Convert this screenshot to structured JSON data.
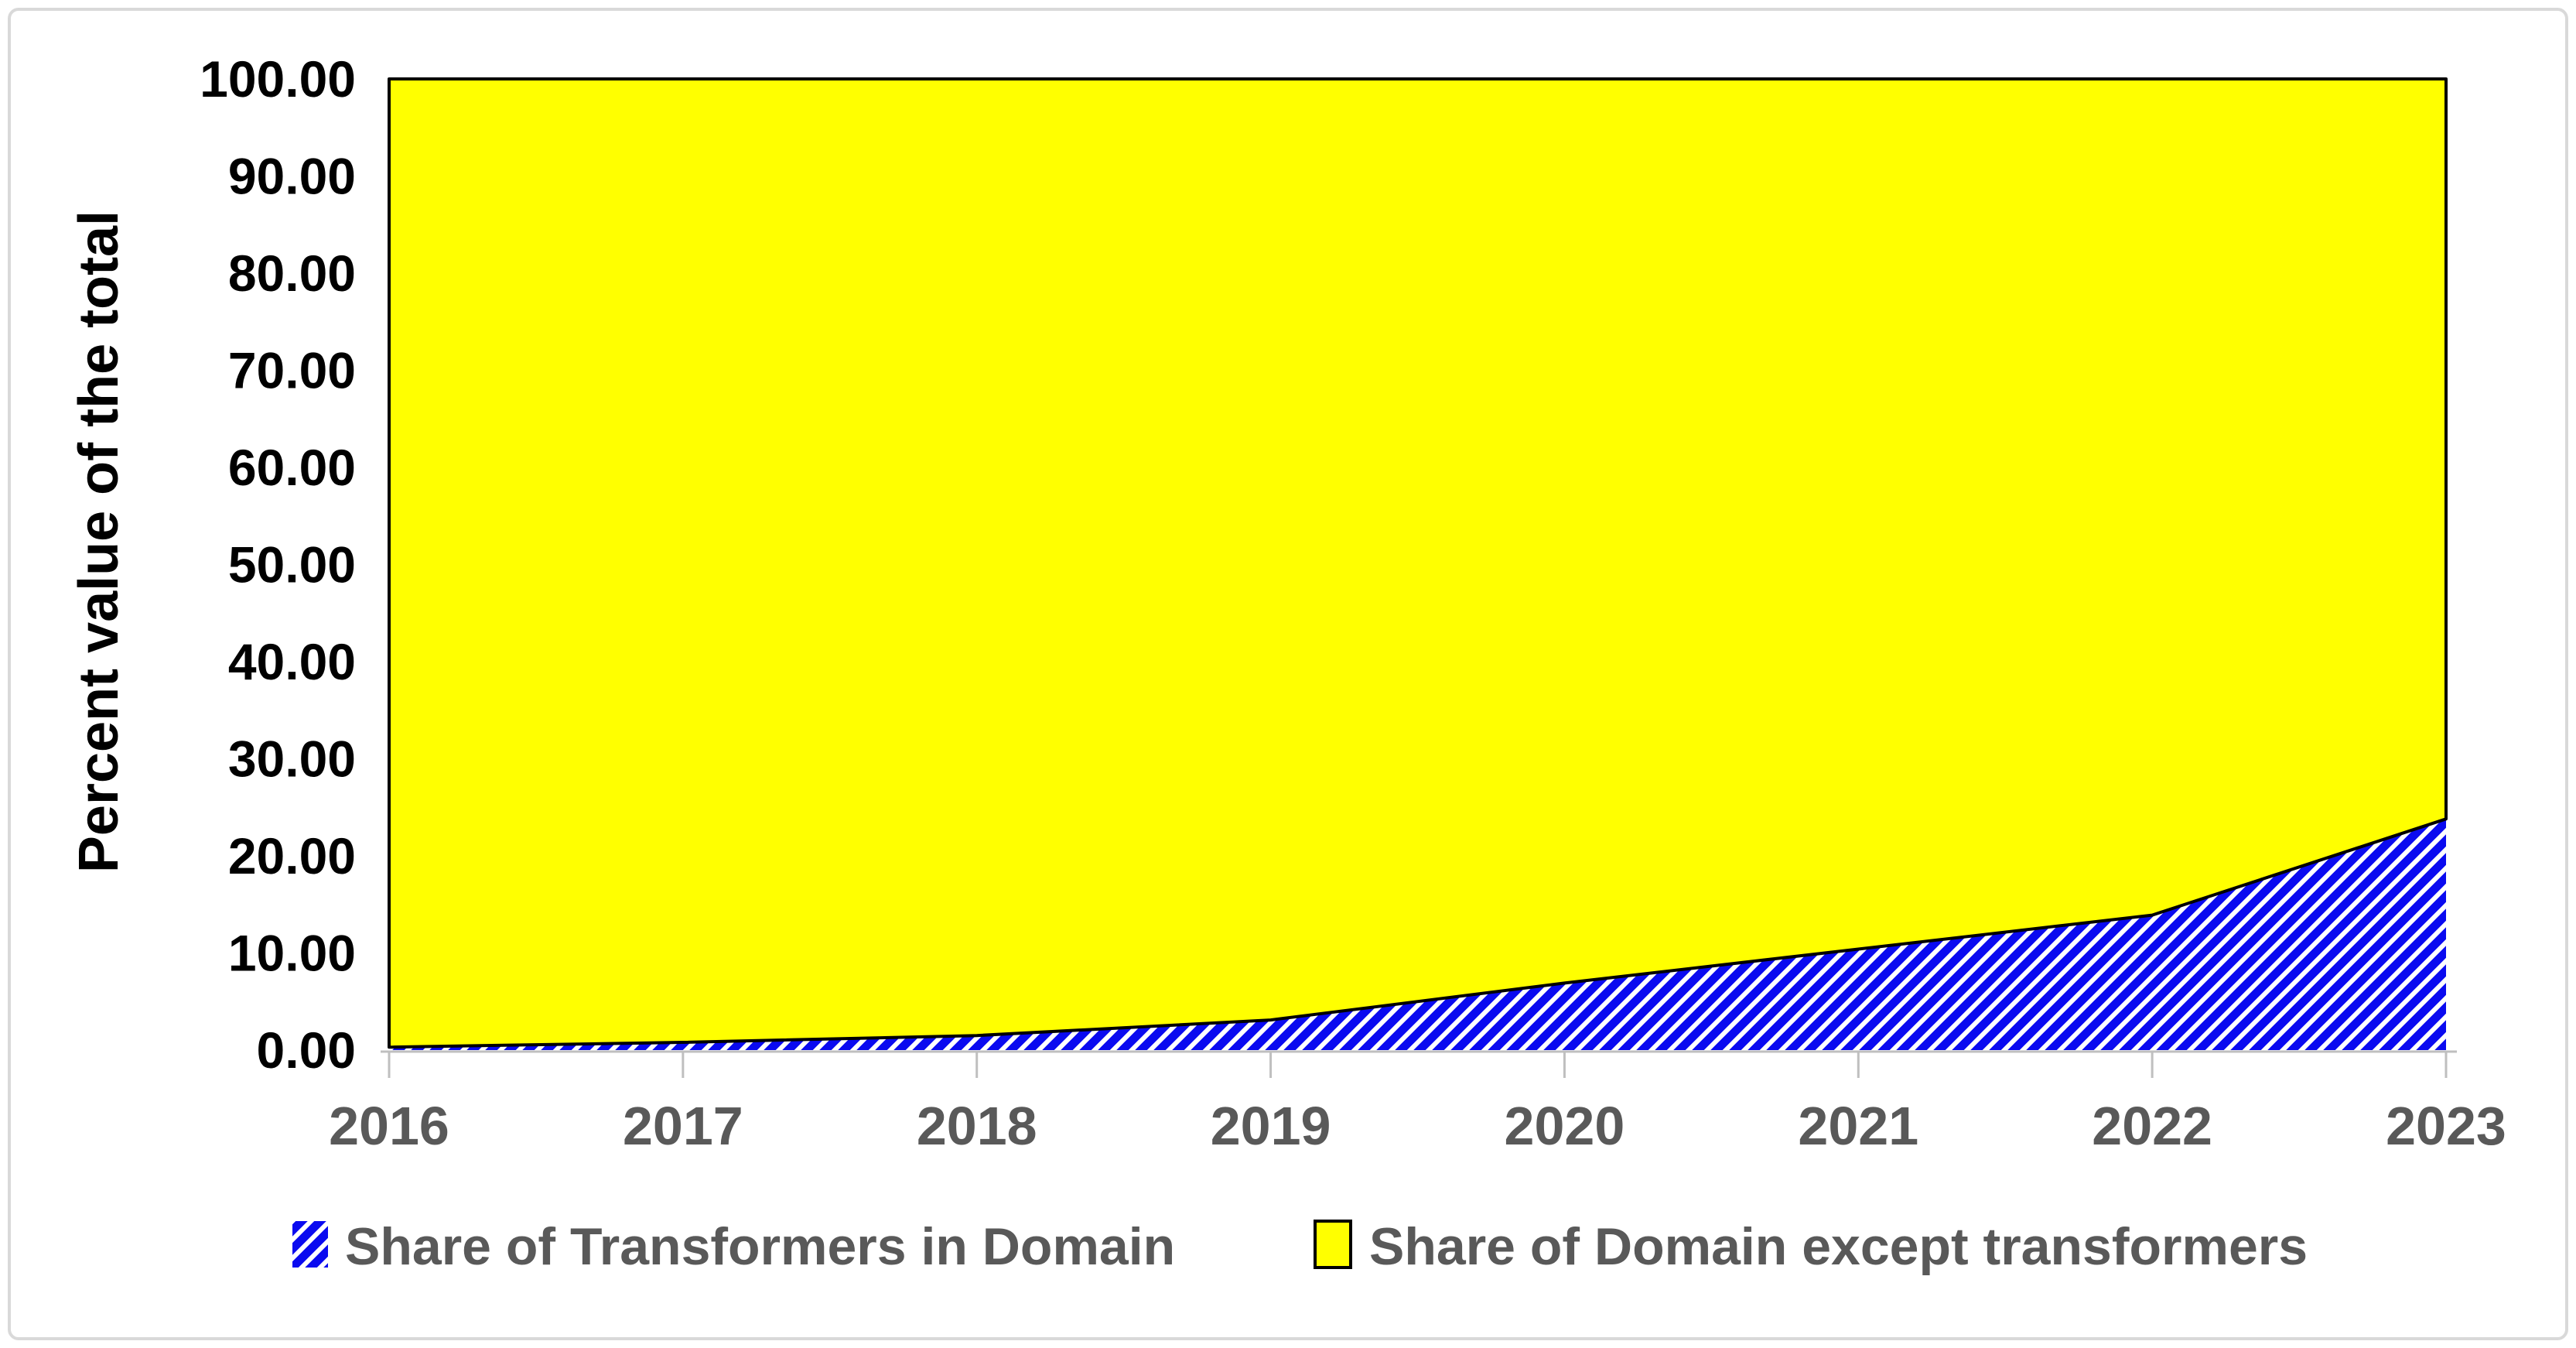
{
  "chart_data": {
    "type": "area",
    "stacked": true,
    "categories": [
      2016,
      2017,
      2018,
      2019,
      2020,
      2021,
      2022,
      2023
    ],
    "series": [
      {
        "name": "Share of Transformers in Domain",
        "values": [
          0.3,
          0.8,
          1.5,
          3.1,
          6.9,
          10.4,
          13.9,
          23.8
        ],
        "fill": "blue-diagonal-hatch"
      },
      {
        "name": "Share of Domain except transformers",
        "values": [
          99.7,
          99.2,
          98.5,
          96.9,
          93.1,
          89.6,
          86.1,
          76.2
        ],
        "fill": "solid-yellow"
      }
    ],
    "ylabel": "Percent value of the total",
    "ylim": [
      0,
      100
    ],
    "ytick_step": 10,
    "ytick_labels": [
      "0.00",
      "10.00",
      "20.00",
      "30.00",
      "40.00",
      "50.00",
      "60.00",
      "70.00",
      "80.00",
      "90.00",
      "100.00"
    ],
    "grid": false,
    "legend_position": "bottom-center"
  },
  "colors": {
    "area_yellow": "#ffff00",
    "hatch_blue": "#0a0af0",
    "series_outline": "#000000",
    "axis_line": "#bfbfbf",
    "x_tick_label": "#595959",
    "y_tick_label": "#000000",
    "y_axis_title": "#000000",
    "legend_text": "#595959",
    "frame_border": "#d9d9d9",
    "background": "#ffffff"
  }
}
